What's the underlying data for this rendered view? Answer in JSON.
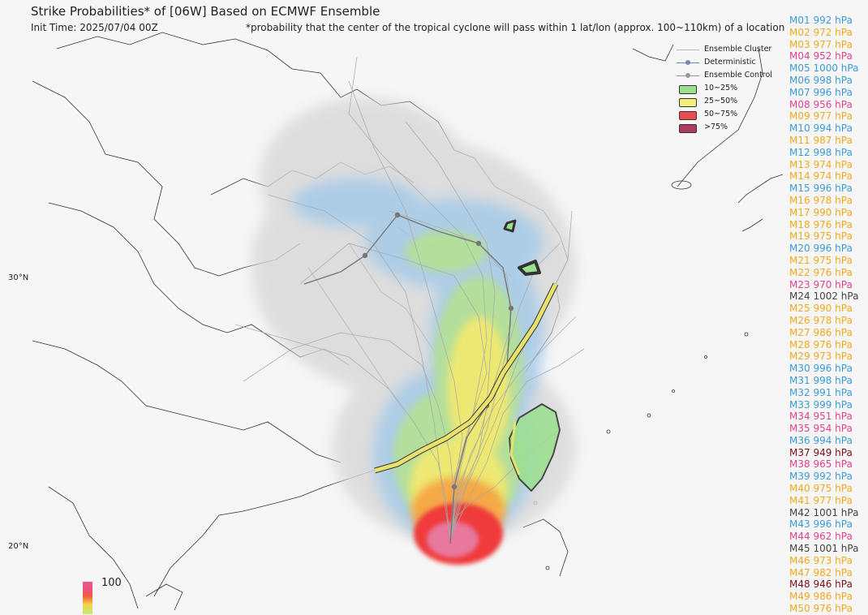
{
  "header": {
    "title": "Strike Probabilities* of [06W] Based on ECMWF Ensemble",
    "init_time": "Init Time: 2025/07/04 00Z",
    "footnote": "*probability that the center of the tropical cyclone will pass within 1 lat/lon (approx. 100~110km) of a location"
  },
  "latitude_labels": [
    "30°N",
    "20°N"
  ],
  "legend": {
    "cluster": "Ensemble Cluster",
    "deterministic": "Deterministic",
    "control": "Ensemble Control",
    "bins": [
      {
        "label": "10~25%",
        "color": "#9be08f"
      },
      {
        "label": "25~50%",
        "color": "#f3f07a"
      },
      {
        "label": "50~75%",
        "color": "#ea4d4d"
      },
      {
        "label": ">75%",
        "color": "#b23a5e"
      }
    ]
  },
  "colorbar": {
    "max_label": "100"
  },
  "colors": {
    "blue": "#3b9bd6",
    "orange": "#f0a81e",
    "magenta": "#e0418f",
    "gray": "#444444",
    "dark_red": "#7a0f1a"
  },
  "members": [
    {
      "label": "M01 992 hPa",
      "color": "#3b9bd6"
    },
    {
      "label": "M02 972 hPa",
      "color": "#f0a81e"
    },
    {
      "label": "M03 977 hPa",
      "color": "#f0a81e"
    },
    {
      "label": "M04 952 hPa",
      "color": "#e0418f"
    },
    {
      "label": "M05 1000 hPa",
      "color": "#3b9bd6"
    },
    {
      "label": "M06 998 hPa",
      "color": "#3b9bd6"
    },
    {
      "label": "M07 996 hPa",
      "color": "#3b9bd6"
    },
    {
      "label": "M08 956 hPa",
      "color": "#e0418f"
    },
    {
      "label": "M09 977 hPa",
      "color": "#f0a81e"
    },
    {
      "label": "M10 994 hPa",
      "color": "#3b9bd6"
    },
    {
      "label": "M11 987 hPa",
      "color": "#f0a81e"
    },
    {
      "label": "M12 998 hPa",
      "color": "#3b9bd6"
    },
    {
      "label": "M13 974 hPa",
      "color": "#f0a81e"
    },
    {
      "label": "M14 974 hPa",
      "color": "#f0a81e"
    },
    {
      "label": "M15 996 hPa",
      "color": "#3b9bd6"
    },
    {
      "label": "M16 978 hPa",
      "color": "#f0a81e"
    },
    {
      "label": "M17 990 hPa",
      "color": "#f0a81e"
    },
    {
      "label": "M18 976 hPa",
      "color": "#f0a81e"
    },
    {
      "label": "M19 975 hPa",
      "color": "#f0a81e"
    },
    {
      "label": "M20 996 hPa",
      "color": "#3b9bd6"
    },
    {
      "label": "M21 975 hPa",
      "color": "#f0a81e"
    },
    {
      "label": "M22 976 hPa",
      "color": "#f0a81e"
    },
    {
      "label": "M23 970 hPa",
      "color": "#e0418f"
    },
    {
      "label": "M24 1002 hPa",
      "color": "#444444"
    },
    {
      "label": "M25 990 hPa",
      "color": "#f0a81e"
    },
    {
      "label": "M26 978 hPa",
      "color": "#f0a81e"
    },
    {
      "label": "M27 986 hPa",
      "color": "#f0a81e"
    },
    {
      "label": "M28 976 hPa",
      "color": "#f0a81e"
    },
    {
      "label": "M29 973 hPa",
      "color": "#f0a81e"
    },
    {
      "label": "M30 996 hPa",
      "color": "#3b9bd6"
    },
    {
      "label": "M31 998 hPa",
      "color": "#3b9bd6"
    },
    {
      "label": "M32 991 hPa",
      "color": "#3b9bd6"
    },
    {
      "label": "M33 999 hPa",
      "color": "#3b9bd6"
    },
    {
      "label": "M34 951 hPa",
      "color": "#e0418f"
    },
    {
      "label": "M35 954 hPa",
      "color": "#e0418f"
    },
    {
      "label": "M36 994 hPa",
      "color": "#3b9bd6"
    },
    {
      "label": "M37 949 hPa",
      "color": "#7a0f1a"
    },
    {
      "label": "M38 965 hPa",
      "color": "#e0418f"
    },
    {
      "label": "M39 992 hPa",
      "color": "#3b9bd6"
    },
    {
      "label": "M40 975 hPa",
      "color": "#f0a81e"
    },
    {
      "label": "M41 977 hPa",
      "color": "#f0a81e"
    },
    {
      "label": "M42 1001 hPa",
      "color": "#444444"
    },
    {
      "label": "M43 996 hPa",
      "color": "#3b9bd6"
    },
    {
      "label": "M44 962 hPa",
      "color": "#e0418f"
    },
    {
      "label": "M45 1001 hPa",
      "color": "#444444"
    },
    {
      "label": "M46 973 hPa",
      "color": "#f0a81e"
    },
    {
      "label": "M47 982 hPa",
      "color": "#f0a81e"
    },
    {
      "label": "M48 946 hPa",
      "color": "#7a0f1a"
    },
    {
      "label": "M49 986 hPa",
      "color": "#f0a81e"
    },
    {
      "label": "M50 976 hPa",
      "color": "#f0a81e"
    }
  ]
}
